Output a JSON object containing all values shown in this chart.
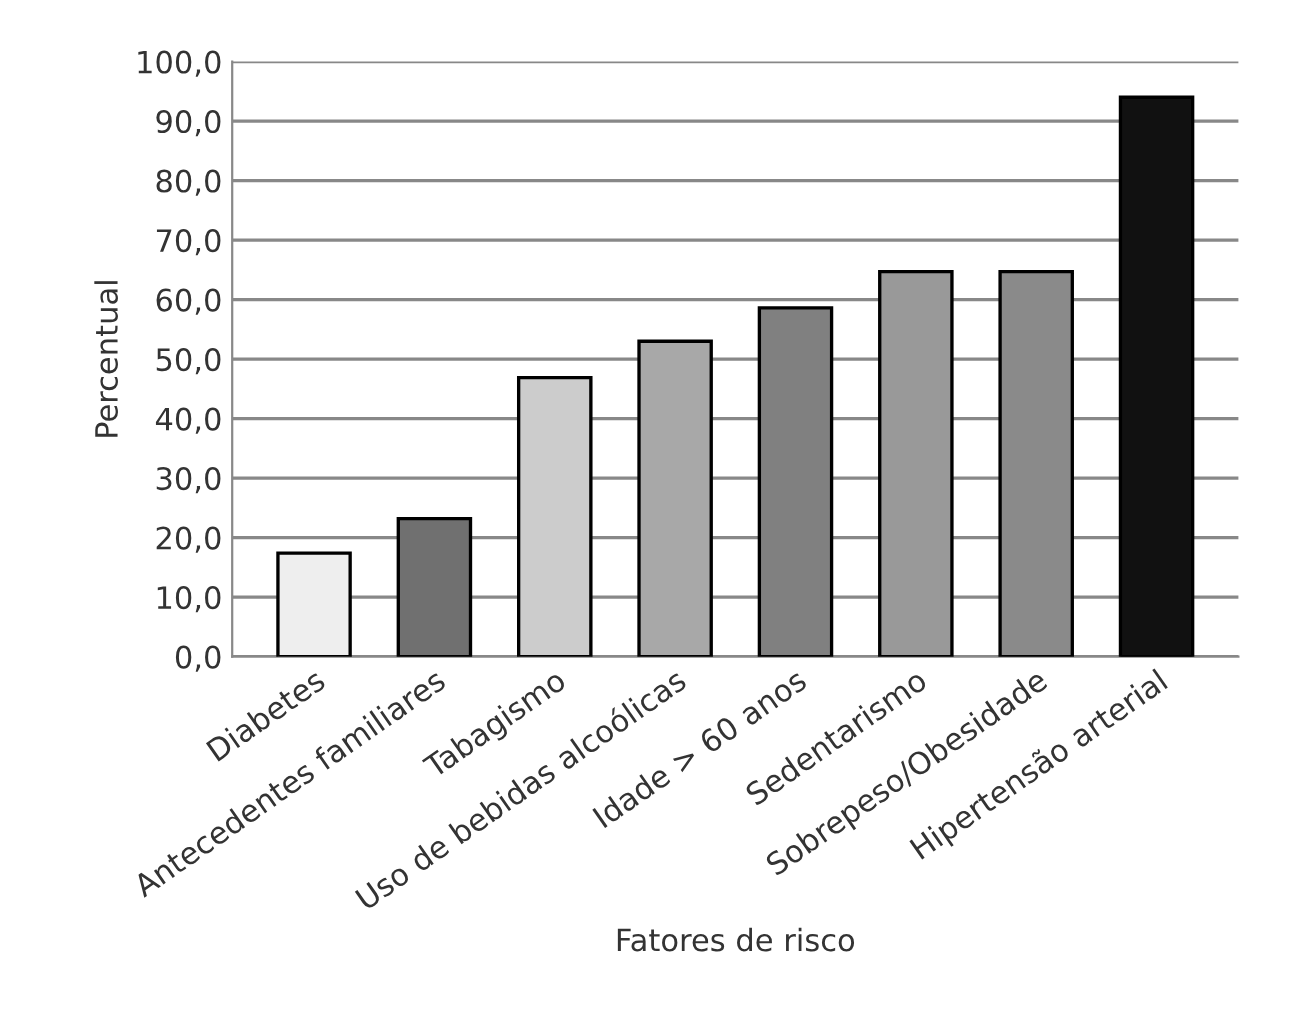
{
  "chart_data": {
    "type": "bar",
    "xlabel": "Fatores de risco",
    "ylabel": "Percentual",
    "categories": [
      "Diabetes",
      "Antecedentes familiares",
      "Tabagismo",
      "Uso de bebidas alcoólicas",
      "Idade > 60 anos",
      "Sedentarismo",
      "Sobrepeso/Obesidade",
      "Hipertensão arterial"
    ],
    "values": [
      17.4,
      23.2,
      46.9,
      53.0,
      58.6,
      64.7,
      64.7,
      94.0
    ],
    "colors": [
      "#eeeeee",
      "#707070",
      "#cccccc",
      "#a8a8a8",
      "#808080",
      "#999999",
      "#8a8a8a",
      "#111111"
    ],
    "ylim": [
      0,
      100
    ],
    "yticks": [
      {
        "value": 0,
        "label": "0,0"
      },
      {
        "value": 10,
        "label": "10,0"
      },
      {
        "value": 20,
        "label": "20,0"
      },
      {
        "value": 30,
        "label": "30,0"
      },
      {
        "value": 40,
        "label": "40,0"
      },
      {
        "value": 50,
        "label": "50,0"
      },
      {
        "value": 60,
        "label": "60,0"
      },
      {
        "value": 70,
        "label": "70,0"
      },
      {
        "value": 80,
        "label": "80,0"
      },
      {
        "value": 90,
        "label": "90,0"
      },
      {
        "value": 100,
        "label": "100,0"
      }
    ],
    "grid": "y"
  }
}
